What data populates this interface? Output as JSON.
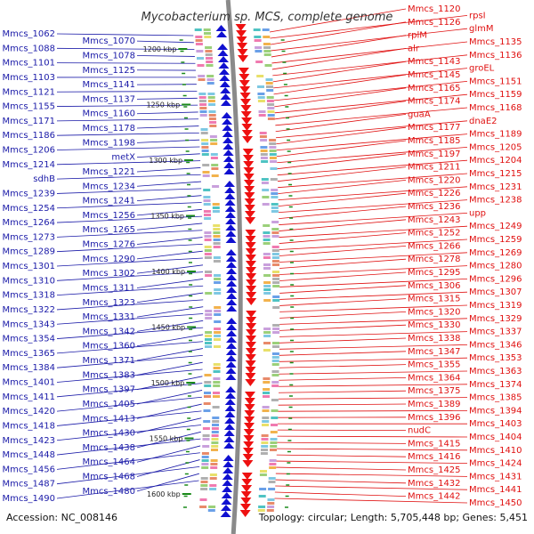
{
  "title": "Mycobacterium sp. MCS, complete genome",
  "footer": {
    "accession": "Accession: NC_008146",
    "summary": "Topology: circular; Length: 5,705,448 bp; Genes: 5,451"
  },
  "colors": {
    "left_strand": "#1a1aa8",
    "right_strand": "#e01010",
    "left_arrows": "#1010d0",
    "right_arrows": "#ee1111",
    "backbone": "#8a8a8a",
    "ticks": "#1a8a1a"
  },
  "scale_ticks": [
    "1200 kbp",
    "1250 kbp",
    "1300 kbp",
    "1350 kbp",
    "1400 kbp",
    "1450 kbp",
    "1500 kbp",
    "1550 kbp",
    "1600 kbp"
  ],
  "left_labels": [
    "Mmcs_1062",
    "Mmcs_1070",
    "Mmcs_1088",
    "Mmcs_1078",
    "Mmcs_1101",
    "Mmcs_1125",
    "Mmcs_1103",
    "Mmcs_1141",
    "Mmcs_1121",
    "Mmcs_1137",
    "Mmcs_1155",
    "Mmcs_1160",
    "Mmcs_1171",
    "Mmcs_1178",
    "Mmcs_1186",
    "Mmcs_1198",
    "Mmcs_1206",
    "metX",
    "Mmcs_1214",
    "Mmcs_1221",
    "sdhB",
    "Mmcs_1234",
    "Mmcs_1239",
    "Mmcs_1241",
    "Mmcs_1254",
    "Mmcs_1256",
    "Mmcs_1264",
    "Mmcs_1265",
    "Mmcs_1273",
    "Mmcs_1276",
    "Mmcs_1289",
    "Mmcs_1290",
    "Mmcs_1301",
    "Mmcs_1302",
    "Mmcs_1310",
    "Mmcs_1311",
    "Mmcs_1318",
    "Mmcs_1323",
    "Mmcs_1322",
    "Mmcs_1331",
    "Mmcs_1343",
    "Mmcs_1342",
    "Mmcs_1354",
    "Mmcs_1360",
    "Mmcs_1365",
    "Mmcs_1371",
    "Mmcs_1384",
    "Mmcs_1383",
    "Mmcs_1401",
    "Mmcs_1397",
    "Mmcs_1411",
    "Mmcs_1405",
    "Mmcs_1420",
    "Mmcs_1413",
    "Mmcs_1418",
    "Mmcs_1430",
    "Mmcs_1423",
    "Mmcs_1438",
    "Mmcs_1448",
    "Mmcs_1464",
    "Mmcs_1456",
    "Mmcs_1468",
    "Mmcs_1487",
    "Mmcs_1480",
    "Mmcs_1490"
  ],
  "right_labels": [
    "Mmcs_1120",
    "rpsI",
    "Mmcs_1126",
    "glmM",
    "rplM",
    "Mmcs_1135",
    "alr",
    "Mmcs_1136",
    "Mmcs_1143",
    "groEL",
    "Mmcs_1145",
    "Mmcs_1151",
    "Mmcs_1165",
    "Mmcs_1159",
    "Mmcs_1174",
    "Mmcs_1168",
    "guaA",
    "dnaE2",
    "Mmcs_1177",
    "Mmcs_1189",
    "Mmcs_1185",
    "Mmcs_1205",
    "Mmcs_1197",
    "Mmcs_1204",
    "Mmcs_1211",
    "Mmcs_1215",
    "Mmcs_1220",
    "Mmcs_1231",
    "Mmcs_1226",
    "Mmcs_1238",
    "Mmcs_1236",
    "upp",
    "Mmcs_1243",
    "Mmcs_1249",
    "Mmcs_1252",
    "Mmcs_1259",
    "Mmcs_1266",
    "Mmcs_1269",
    "Mmcs_1278",
    "Mmcs_1280",
    "Mmcs_1295",
    "Mmcs_1296",
    "Mmcs_1306",
    "Mmcs_1307",
    "Mmcs_1315",
    "Mmcs_1319",
    "Mmcs_1320",
    "Mmcs_1329",
    "Mmcs_1330",
    "Mmcs_1337",
    "Mmcs_1338",
    "Mmcs_1346",
    "Mmcs_1347",
    "Mmcs_1353",
    "Mmcs_1355",
    "Mmcs_1363",
    "Mmcs_1364",
    "Mmcs_1374",
    "Mmcs_1375",
    "Mmcs_1385",
    "Mmcs_1389",
    "Mmcs_1394",
    "Mmcs_1396",
    "Mmcs_1403",
    "nudC",
    "Mmcs_1404",
    "Mmcs_1415",
    "Mmcs_1410",
    "Mmcs_1416",
    "Mmcs_1424",
    "Mmcs_1425",
    "Mmcs_1431",
    "Mmcs_1432",
    "Mmcs_1441",
    "Mmcs_1442",
    "Mmcs_1450"
  ]
}
